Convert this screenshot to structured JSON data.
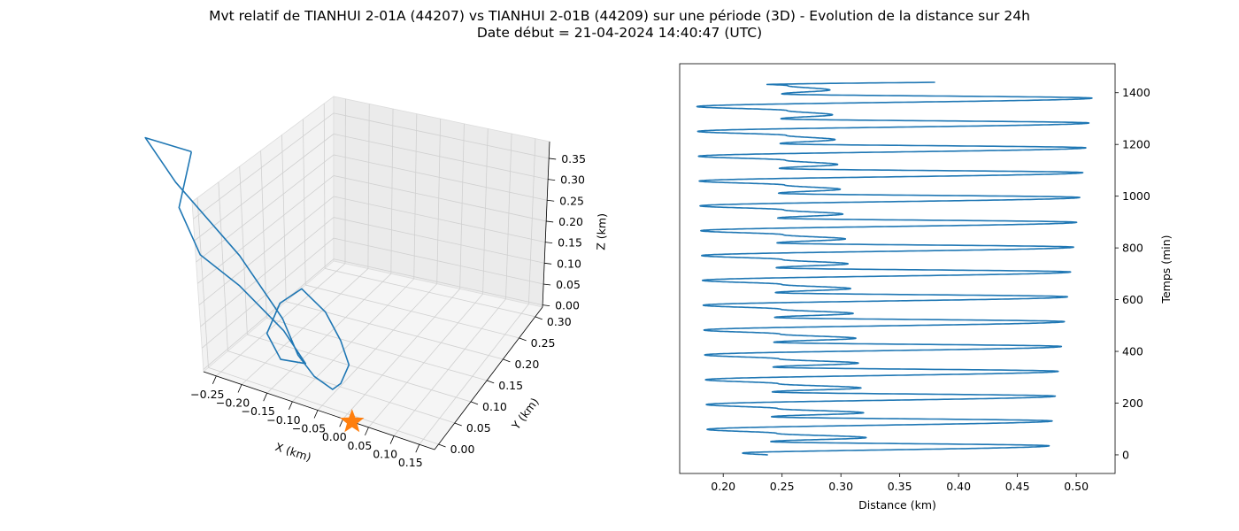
{
  "figure": {
    "title_line1": "Mvt relatif de TIANHUI 2-01A (44207) vs TIANHUI 2-01B (44209) sur une période (3D) - Evolution de la distance sur 24h",
    "title_line2": "Date début = 21-04-2024 14:40:47 (UTC)"
  },
  "chart_data": [
    {
      "type": "line3d",
      "xlabel": "X (km)",
      "ylabel": "Y (km)",
      "zlabel": "Z (km)",
      "xlim": [
        -0.27,
        0.15
      ],
      "ylim": [
        0,
        0.32
      ],
      "zlim": [
        0,
        0.37
      ],
      "x_ticks": [
        "−0.25",
        "−0.20",
        "−0.15",
        "−0.10",
        "−0.05",
        "0.00",
        "0.05",
        "0.10",
        "0.15"
      ],
      "y_ticks": [
        "0.00",
        "0.05",
        "0.10",
        "0.15",
        "0.20",
        "0.25",
        "0.30"
      ],
      "z_ticks": [
        "0.00",
        "0.05",
        "0.10",
        "0.15",
        "0.20",
        "0.25",
        "0.30",
        "0.35"
      ],
      "grid": true,
      "series": [
        {
          "color": "#1f77b4",
          "points": [
            [
              -0.08,
              0.27,
              0.36
            ],
            [
              -0.2,
              0.22,
              0.38
            ],
            [
              -0.22,
              0.12,
              0.35
            ],
            [
              -0.18,
              0.02,
              0.28
            ],
            [
              -0.12,
              0.0,
              0.18
            ],
            [
              -0.08,
              0.02,
              0.1
            ],
            [
              -0.03,
              0.05,
              0.05
            ],
            [
              0.01,
              0.06,
              0.03
            ],
            [
              0.04,
              0.08,
              0.04
            ],
            [
              0.1,
              0.14,
              0.06
            ],
            [
              0.13,
              0.2,
              0.08
            ],
            [
              0.14,
              0.25,
              0.11
            ],
            [
              0.12,
              0.28,
              0.13
            ],
            [
              0.05,
              0.24,
              0.1
            ],
            [
              -0.02,
              0.18,
              0.05
            ],
            [
              -0.04,
              0.12,
              0.03
            ],
            [
              0.02,
              0.14,
              0.03
            ],
            [
              0.04,
              0.22,
              0.05
            ],
            [
              0.02,
              0.3,
              0.08
            ],
            [
              -0.05,
              0.3,
              0.12
            ],
            [
              -0.1,
              0.28,
              0.22
            ],
            [
              -0.08,
              0.27,
              0.36
            ]
          ]
        }
      ],
      "marker": {
        "symbol": "star",
        "color": "#ff7f0e",
        "point": [
          0,
          0,
          0
        ]
      }
    },
    {
      "type": "line",
      "xlabel": "Distance (km)",
      "ylabel": "Temps (min)",
      "xlim": [
        0.163,
        0.533
      ],
      "ylim": [
        -72,
        1512
      ],
      "x_ticks": [
        0.2,
        0.25,
        0.3,
        0.35,
        0.4,
        0.45,
        0.5
      ],
      "y_ticks": [
        0,
        200,
        400,
        600,
        800,
        1000,
        1200,
        1400
      ],
      "grid": false,
      "color": "#1f77b4",
      "series_params": {
        "period_min": 96,
        "t_start": 0,
        "t_end": 1440,
        "min_dist_start": 0.187,
        "min_dist_end": 0.177,
        "max_dist_start": 0.476,
        "max_dist_end": 0.515,
        "sec_min_start": 0.24,
        "sec_min_end": 0.25,
        "sec_max_start": 0.323,
        "sec_max_end": 0.29,
        "start_dist": 0.238,
        "end_dist": 0.38
      }
    }
  ]
}
